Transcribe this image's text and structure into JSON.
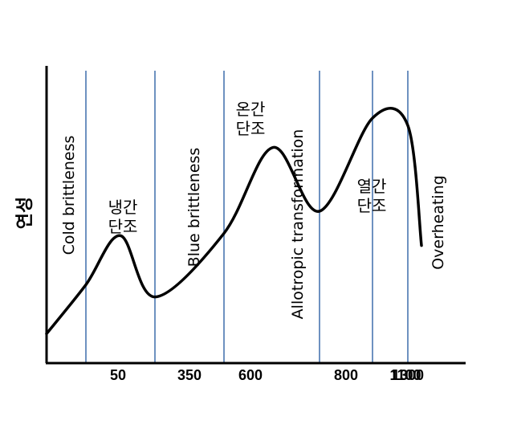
{
  "chart_data": {
    "type": "line",
    "title": "",
    "xlabel": "",
    "ylabel": "연성",
    "x_ticks": [
      "50",
      "350",
      "600",
      "800",
      "1100",
      "1300"
    ],
    "dividers": [
      50,
      350,
      600,
      800,
      1100,
      1300
    ],
    "grid": false,
    "legend": "none",
    "series": [
      {
        "x": [
          -150,
          50,
          200,
          350,
          600,
          700,
          800,
          1100,
          1300,
          1350
        ],
        "y": [
          0.12,
          0.32,
          0.52,
          0.27,
          0.53,
          0.88,
          0.62,
          1.0,
          0.97,
          0.48
        ]
      }
    ],
    "regions": [
      {
        "lines": [
          "Cold brittleness"
        ],
        "vertical": true
      },
      {
        "lines": [
          "냉간",
          "단조"
        ],
        "vertical": false
      },
      {
        "lines": [
          "Blue brittleness"
        ],
        "vertical": true
      },
      {
        "lines": [
          "온간",
          "단조"
        ],
        "vertical": false
      },
      {
        "lines": [
          "Allotropic transformation"
        ],
        "vertical": true
      },
      {
        "lines": [
          "열간",
          "단조"
        ],
        "vertical": false
      },
      {
        "lines": [
          "Overheating"
        ],
        "vertical": true
      }
    ],
    "colors": {
      "curve": "#000000",
      "divider": "#4a76b0",
      "axis": "#000000"
    }
  }
}
